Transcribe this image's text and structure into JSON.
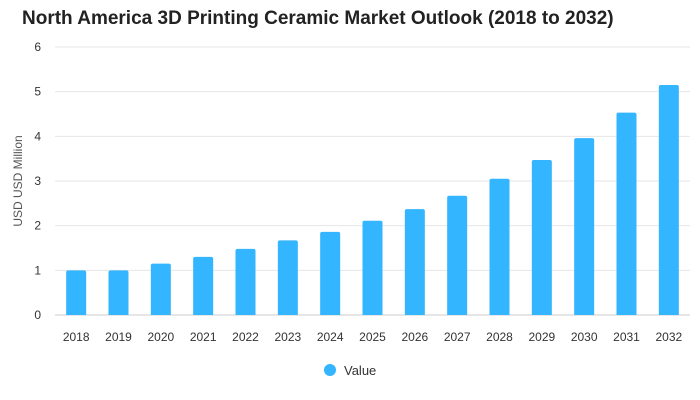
{
  "chart_data": {
    "type": "bar",
    "title": "North America 3D Printing Ceramic Market Outlook (2018 to 2032)",
    "xlabel": "",
    "ylabel": "USD USD Million",
    "categories": [
      "2018",
      "2019",
      "2020",
      "2021",
      "2022",
      "2023",
      "2024",
      "2025",
      "2026",
      "2027",
      "2028",
      "2029",
      "2030",
      "2031",
      "2032"
    ],
    "series": [
      {
        "name": "Value",
        "color": "#33b5ff",
        "values": [
          1.0,
          1.0,
          1.15,
          1.3,
          1.48,
          1.67,
          1.86,
          2.11,
          2.37,
          2.67,
          3.05,
          3.47,
          3.96,
          4.53,
          5.15
        ]
      }
    ],
    "ylim": [
      0,
      6
    ],
    "yticks": [
      "0",
      "1",
      "2",
      "3",
      "4",
      "5",
      "6"
    ],
    "grid": true,
    "legend": "bottom-center",
    "colors": {
      "bar": "#33b5ff",
      "grid": "#e6e6e6",
      "axis": "#cccccc"
    }
  }
}
